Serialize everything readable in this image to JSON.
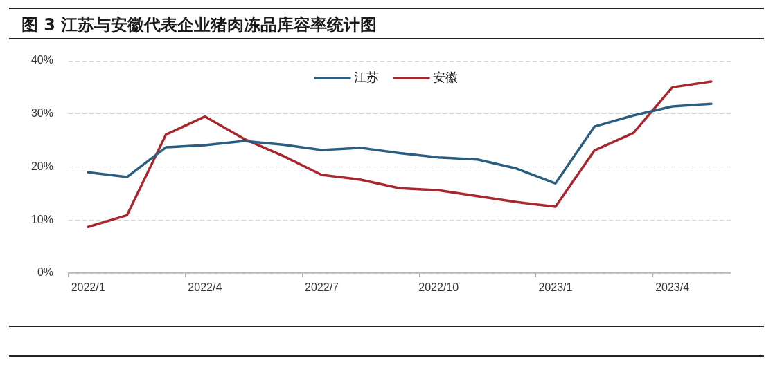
{
  "chart_data": {
    "type": "line",
    "title": "图 3 江苏与安徽代表企业猪肉冻品库容率统计图",
    "categories": [
      "2022/1",
      null,
      null,
      "2022/4",
      null,
      null,
      "2022/7",
      null,
      null,
      "2022/10",
      null,
      null,
      "2023/1",
      null,
      null,
      "2023/4",
      null
    ],
    "series": [
      {
        "name": "江苏",
        "color": "#2b5f82",
        "values": [
          19.0,
          18.1,
          23.7,
          24.1,
          24.9,
          24.2,
          23.2,
          23.6,
          22.6,
          21.8,
          21.4,
          19.7,
          16.9,
          27.6,
          29.7,
          31.4,
          31.9
        ]
      },
      {
        "name": "安徽",
        "color": "#a8272d",
        "values": [
          8.7,
          10.9,
          26.1,
          29.5,
          25.3,
          22.1,
          18.5,
          17.6,
          16.0,
          15.6,
          14.5,
          13.4,
          12.5,
          23.1,
          26.4,
          35.0,
          36.1
        ]
      }
    ],
    "ylim": [
      0,
      40
    ],
    "yticks": [
      {
        "value": 0,
        "label": "0%"
      },
      {
        "value": 10,
        "label": "10%"
      },
      {
        "value": 20,
        "label": "20%"
      },
      {
        "value": 30,
        "label": "30%"
      },
      {
        "value": 40,
        "label": "40%"
      }
    ],
    "grid": "y",
    "legend": "top",
    "marker": "none",
    "line_style": "solid"
  }
}
